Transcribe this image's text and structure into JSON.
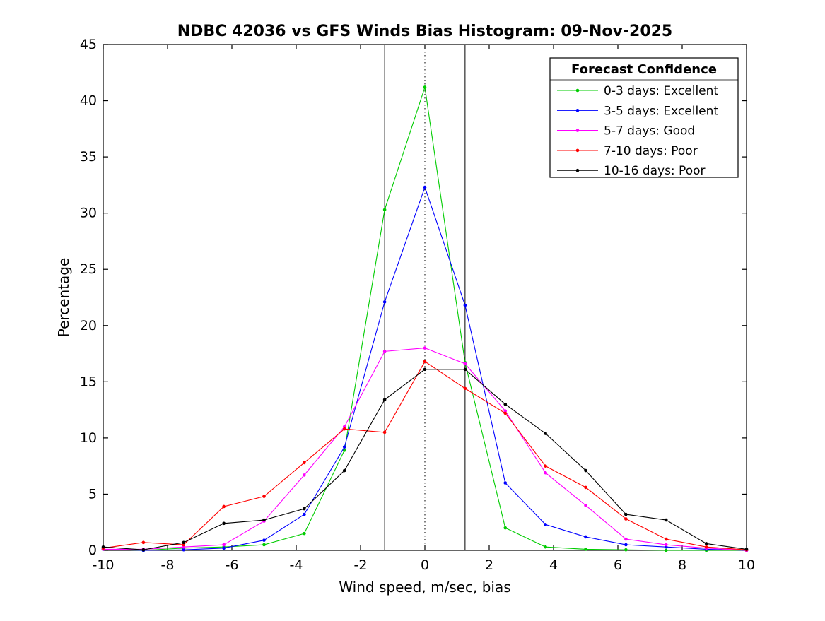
{
  "chart_data": {
    "type": "line",
    "title": "NDBC 42036 vs GFS Winds Bias Histogram: 09-Nov-2025",
    "xlabel": "Wind speed, m/sec, bias",
    "ylabel": "Percentage",
    "xlim": [
      -10,
      10
    ],
    "ylim": [
      0,
      45
    ],
    "xticks": [
      -10,
      -8,
      -6,
      -4,
      -2,
      0,
      2,
      4,
      6,
      8,
      10
    ],
    "yticks": [
      0,
      5,
      10,
      15,
      20,
      25,
      30,
      35,
      40,
      45
    ],
    "x": [
      -10,
      -8.75,
      -7.5,
      -6.25,
      -5,
      -3.75,
      -2.5,
      -1.25,
      0,
      1.25,
      2.5,
      3.75,
      5,
      6.25,
      7.5,
      8.75,
      10
    ],
    "series": [
      {
        "name": "0-3 days: Excellent",
        "color": "#00cc00",
        "values": [
          0.1,
          0,
          0.2,
          0.3,
          0.5,
          1.5,
          8.9,
          30.3,
          41.2,
          16.7,
          2.0,
          0.3,
          0.1,
          0.05,
          0,
          0,
          0
        ]
      },
      {
        "name": "3-5 days: Excellent",
        "color": "#0000ff",
        "values": [
          0.1,
          0,
          0.05,
          0.2,
          0.9,
          3.2,
          9.2,
          22.1,
          32.3,
          21.8,
          6.0,
          2.3,
          1.2,
          0.5,
          0.3,
          0.1,
          0
        ]
      },
      {
        "name": "5-7 days: Good",
        "color": "#ff00ff",
        "values": [
          0.1,
          0.1,
          0.3,
          0.5,
          2.6,
          6.7,
          11.0,
          17.7,
          18.0,
          16.6,
          12.4,
          6.9,
          4.0,
          1.0,
          0.5,
          0.2,
          0
        ]
      },
      {
        "name": "7-10 days: Poor",
        "color": "#ff0000",
        "values": [
          0.2,
          0.7,
          0.5,
          3.9,
          4.8,
          7.8,
          10.8,
          10.5,
          16.8,
          14.4,
          12.2,
          7.5,
          5.6,
          2.8,
          1.0,
          0.3,
          0.05
        ]
      },
      {
        "name": "10-16 days: Poor",
        "color": "#000000",
        "values": [
          0.3,
          0.05,
          0.7,
          2.4,
          2.7,
          3.7,
          7.1,
          13.4,
          16.1,
          16.1,
          13.0,
          10.4,
          7.1,
          3.2,
          2.7,
          0.6,
          0.1
        ]
      }
    ],
    "vlines": [
      {
        "x": -1.25,
        "style": "solid"
      },
      {
        "x": 0,
        "style": "dotted"
      },
      {
        "x": 1.25,
        "style": "solid"
      }
    ],
    "legend": {
      "title": "Forecast Confidence",
      "position": "top-right"
    },
    "axis_color": "#000000",
    "background_color": "#ffffff"
  }
}
